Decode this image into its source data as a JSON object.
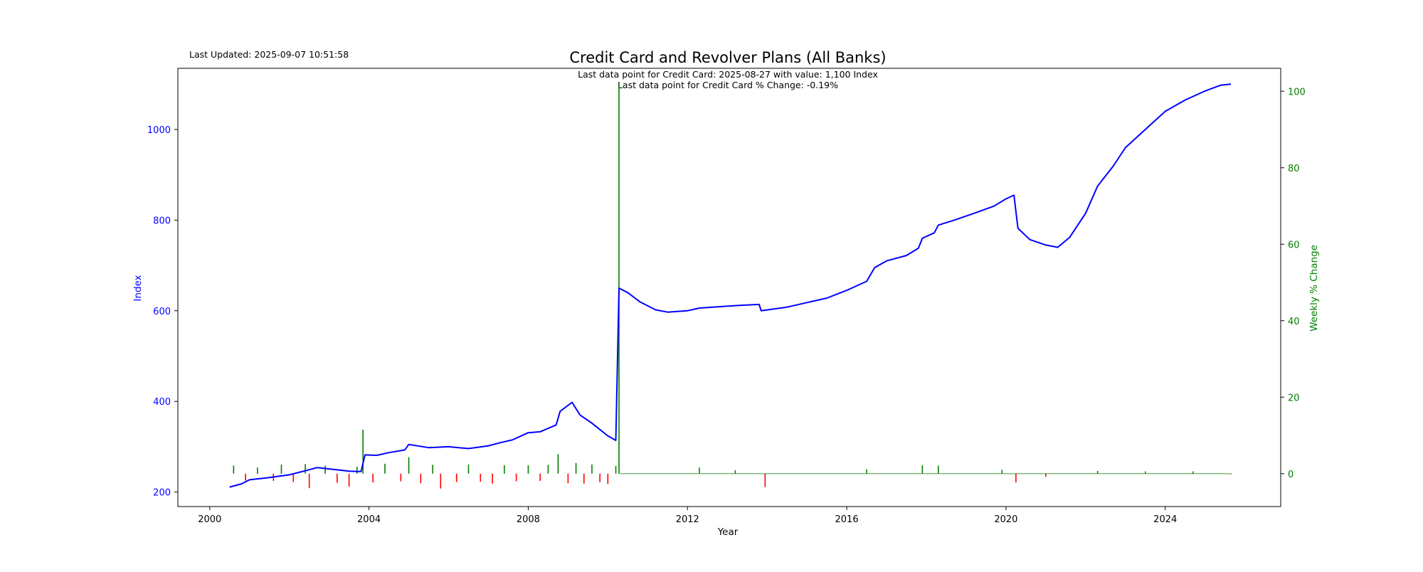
{
  "updated_text": "Last Updated: 2025-09-07 10:51:58",
  "chart_data": {
    "type": "line",
    "title": "Credit Card and Revolver Plans (All Banks)",
    "xlabel": "Year",
    "ylabel_left": "Index",
    "ylabel_right": "Weekly % Change",
    "annotations": [
      "Last data point for Credit Card: 2025-08-27 with value: 1,100 Index",
      "Last data point for Credit Card % Change: -0.19%"
    ],
    "x_ticks": [
      "2000",
      "2004",
      "2008",
      "2012",
      "2016",
      "2020",
      "2024"
    ],
    "y_left_ticks": [
      "200",
      "400",
      "600",
      "800",
      "1000"
    ],
    "y_right_ticks": [
      "0",
      "20",
      "40",
      "60",
      "80",
      "100"
    ],
    "xlim": [
      1999.2,
      2026.9
    ],
    "ylim_left": [
      168,
      1135
    ],
    "ylim_right": [
      -8.6,
      106
    ],
    "grid": false,
    "colors": {
      "index_line": "#0000ff",
      "left_axis": "#0000ff",
      "right_axis": "#008000",
      "positive_change": "#008000",
      "negative_change": "#ff0000"
    },
    "index_series": {
      "name": "Credit Card",
      "points": [
        [
          2000.5,
          211
        ],
        [
          2000.8,
          218
        ],
        [
          2001.0,
          227
        ],
        [
          2001.5,
          232
        ],
        [
          2002.0,
          238
        ],
        [
          2002.4,
          247
        ],
        [
          2002.7,
          254
        ],
        [
          2003.0,
          251
        ],
        [
          2003.5,
          246
        ],
        [
          2003.8,
          245
        ],
        [
          2003.9,
          282
        ],
        [
          2004.2,
          281
        ],
        [
          2004.5,
          287
        ],
        [
          2004.9,
          293
        ],
        [
          2005.0,
          305
        ],
        [
          2005.5,
          298
        ],
        [
          2006.0,
          300
        ],
        [
          2006.5,
          296
        ],
        [
          2007.0,
          302
        ],
        [
          2007.3,
          309
        ],
        [
          2007.6,
          315
        ],
        [
          2008.0,
          331
        ],
        [
          2008.3,
          333
        ],
        [
          2008.7,
          348
        ],
        [
          2008.8,
          378
        ],
        [
          2009.1,
          398
        ],
        [
          2009.3,
          370
        ],
        [
          2009.6,
          352
        ],
        [
          2010.0,
          324
        ],
        [
          2010.2,
          314
        ],
        [
          2010.28,
          650
        ],
        [
          2010.5,
          640
        ],
        [
          2010.8,
          620
        ],
        [
          2011.2,
          602
        ],
        [
          2011.5,
          597
        ],
        [
          2012.0,
          600
        ],
        [
          2012.3,
          606
        ],
        [
          2012.8,
          609
        ],
        [
          2013.3,
          612
        ],
        [
          2013.8,
          614
        ],
        [
          2013.85,
          600
        ],
        [
          2014.5,
          608
        ],
        [
          2015.0,
          618
        ],
        [
          2015.5,
          628
        ],
        [
          2016.0,
          645
        ],
        [
          2016.5,
          665
        ],
        [
          2016.7,
          695
        ],
        [
          2017.0,
          710
        ],
        [
          2017.5,
          722
        ],
        [
          2017.8,
          738
        ],
        [
          2017.9,
          760
        ],
        [
          2018.2,
          772
        ],
        [
          2018.3,
          789
        ],
        [
          2018.7,
          800
        ],
        [
          2019.2,
          815
        ],
        [
          2019.7,
          831
        ],
        [
          2020.0,
          847
        ],
        [
          2020.2,
          855
        ],
        [
          2020.3,
          782
        ],
        [
          2020.6,
          757
        ],
        [
          2021.0,
          745
        ],
        [
          2021.3,
          740
        ],
        [
          2021.6,
          762
        ],
        [
          2022.0,
          815
        ],
        [
          2022.3,
          875
        ],
        [
          2022.7,
          920
        ],
        [
          2023.0,
          960
        ],
        [
          2023.5,
          1000
        ],
        [
          2024.0,
          1040
        ],
        [
          2024.5,
          1065
        ],
        [
          2025.0,
          1085
        ],
        [
          2025.4,
          1098
        ],
        [
          2025.65,
          1100
        ]
      ]
    },
    "change_series": {
      "name": "Credit Card % Change",
      "points": [
        [
          2000.6,
          2.1
        ],
        [
          2000.9,
          -1.8
        ],
        [
          2001.2,
          1.6
        ],
        [
          2001.6,
          -1.9
        ],
        [
          2001.8,
          2.4
        ],
        [
          2002.1,
          -2.2
        ],
        [
          2002.4,
          2.5
        ],
        [
          2002.5,
          -3.8
        ],
        [
          2002.9,
          2.1
        ],
        [
          2003.2,
          -2.4
        ],
        [
          2003.5,
          -3.4
        ],
        [
          2003.7,
          1.8
        ],
        [
          2003.85,
          11.5
        ],
        [
          2004.1,
          -2.3
        ],
        [
          2004.4,
          2.6
        ],
        [
          2004.8,
          -2.0
        ],
        [
          2005.0,
          4.3
        ],
        [
          2005.3,
          -2.5
        ],
        [
          2005.6,
          2.3
        ],
        [
          2005.8,
          -3.9
        ],
        [
          2006.2,
          -2.2
        ],
        [
          2006.5,
          2.4
        ],
        [
          2006.8,
          -2.1
        ],
        [
          2007.1,
          -2.6
        ],
        [
          2007.4,
          2.2
        ],
        [
          2007.7,
          -2.0
        ],
        [
          2008.0,
          2.2
        ],
        [
          2008.3,
          -1.9
        ],
        [
          2008.5,
          2.3
        ],
        [
          2008.75,
          5.1
        ],
        [
          2009.0,
          -2.5
        ],
        [
          2009.2,
          2.8
        ],
        [
          2009.4,
          -2.6
        ],
        [
          2009.6,
          2.4
        ],
        [
          2009.8,
          -2.2
        ],
        [
          2010.0,
          -2.7
        ],
        [
          2010.2,
          2.0
        ],
        [
          2010.28,
          101.8
        ],
        [
          2012.3,
          1.6
        ],
        [
          2013.2,
          0.9
        ],
        [
          2013.95,
          -3.5
        ],
        [
          2016.5,
          1.1
        ],
        [
          2017.9,
          2.2
        ],
        [
          2018.3,
          2.1
        ],
        [
          2019.9,
          1.0
        ],
        [
          2020.25,
          -2.3
        ],
        [
          2021.0,
          -0.8
        ],
        [
          2022.3,
          0.7
        ],
        [
          2023.5,
          0.6
        ],
        [
          2024.7,
          0.6
        ],
        [
          2025.65,
          -0.19
        ]
      ]
    }
  }
}
